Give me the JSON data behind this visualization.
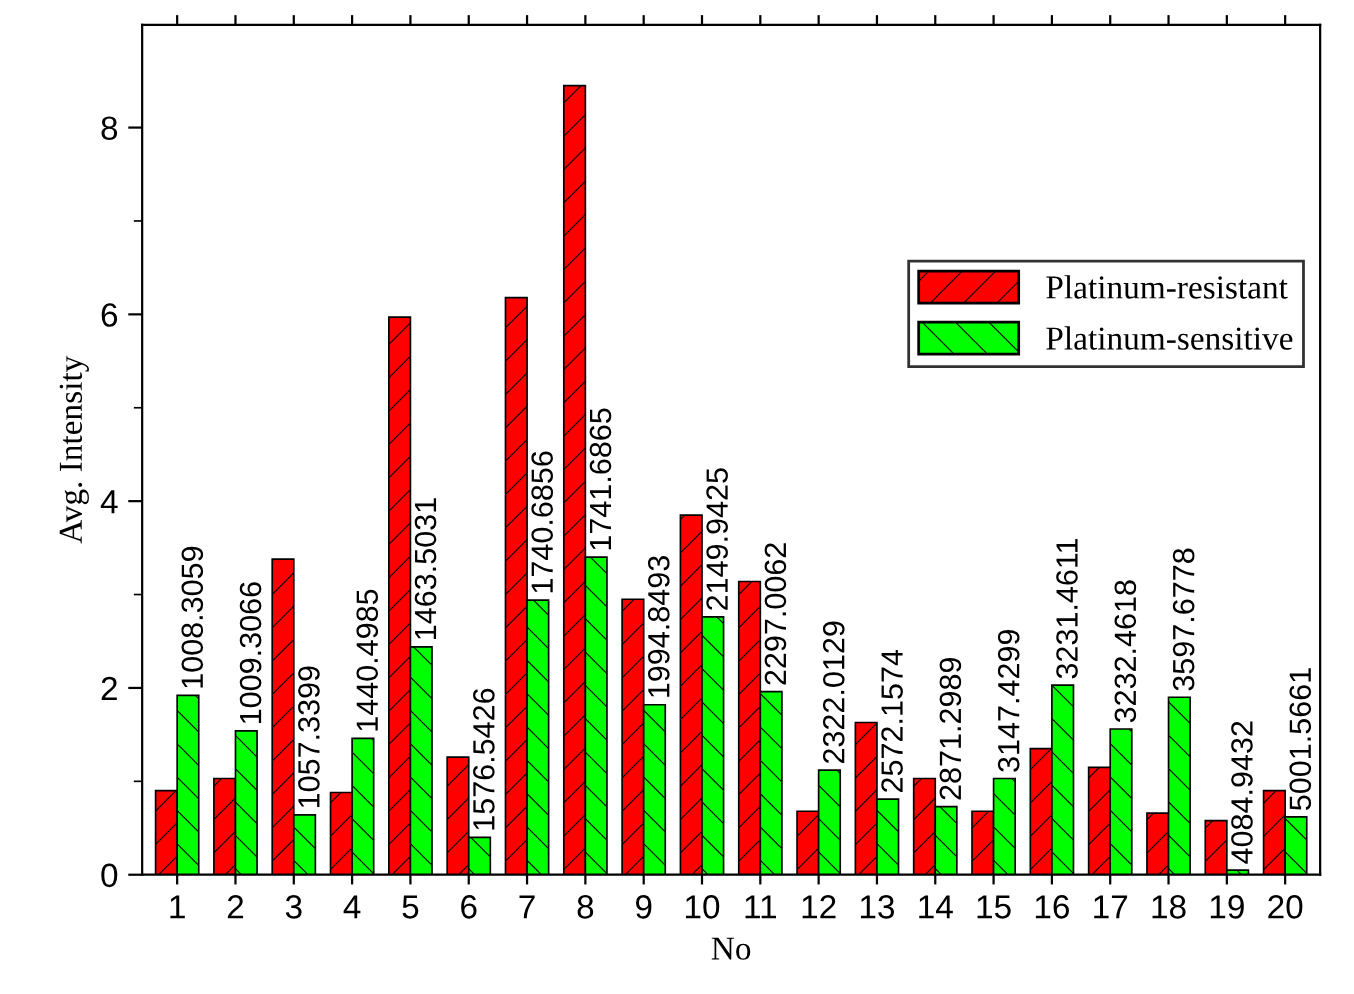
{
  "chart_data": {
    "type": "bar",
    "xlabel": "No",
    "ylabel": "Avg. Intensity",
    "categories": [
      "1",
      "2",
      "3",
      "4",
      "5",
      "6",
      "7",
      "8",
      "9",
      "10",
      "11",
      "12",
      "13",
      "14",
      "15",
      "16",
      "17",
      "18",
      "19",
      "20"
    ],
    "series": [
      {
        "name": "Platinum-resistant",
        "color": "#ff0000",
        "values": [
          0.9,
          1.03,
          3.38,
          0.88,
          5.97,
          1.26,
          6.18,
          8.45,
          2.95,
          3.85,
          3.14,
          0.68,
          1.63,
          1.03,
          0.68,
          1.35,
          1.15,
          0.66,
          0.58,
          0.9
        ]
      },
      {
        "name": "Platinum-sensitive",
        "color": "#00ff00",
        "values": [
          1.92,
          1.54,
          0.64,
          1.46,
          2.44,
          0.4,
          2.94,
          3.4,
          1.82,
          2.76,
          1.96,
          1.12,
          0.81,
          0.73,
          1.03,
          2.03,
          1.56,
          1.9,
          0.05,
          0.62
        ]
      }
    ],
    "ylim": [
      0,
      9.1
    ],
    "yticks": [
      0,
      {
        "value": 1,
        "label": null
      },
      2,
      {
        "value": 3,
        "label": null
      },
      4,
      {
        "value": 5,
        "label": null
      },
      6,
      {
        "value": 7,
        "label": null
      },
      8
    ],
    "legend": "right",
    "grid": false,
    "annotations": [
      {
        "text": "1008.3059",
        "x": "1",
        "y": 1.92
      },
      {
        "text": "1009.3066",
        "x": "2",
        "y": 1.54
      },
      {
        "text": "1057.3399",
        "x": "3",
        "y": 0.64
      },
      {
        "text": "1440.4985",
        "x": "4",
        "y": 1.46
      },
      {
        "text": "1463.5031",
        "x": "5",
        "y": 2.44
      },
      {
        "text": "1576.5426",
        "x": "6",
        "y": 0.4
      },
      {
        "text": "1740.6856",
        "x": "7",
        "y": 2.94
      },
      {
        "text": "1741.6865",
        "x": "8",
        "y": 3.4
      },
      {
        "text": "1994.8493",
        "x": "9",
        "y": 1.82
      },
      {
        "text": "2149.9425",
        "x": "10",
        "y": 2.76
      },
      {
        "text": "2297.0062",
        "x": "11",
        "y": 1.96
      },
      {
        "text": "2322.0129",
        "x": "12",
        "y": 1.12
      },
      {
        "text": "2572.1574",
        "x": "13",
        "y": 0.81
      },
      {
        "text": "2871.2989",
        "x": "14",
        "y": 0.73
      },
      {
        "text": "3147.4299",
        "x": "15",
        "y": 1.03
      },
      {
        "text": "3231.4611",
        "x": "16",
        "y": 2.03
      },
      {
        "text": "3232.4618",
        "x": "17",
        "y": 1.56
      },
      {
        "text": "3597.6778",
        "x": "18",
        "y": 1.9
      },
      {
        "text": "4084.9432",
        "x": "19",
        "y": 0.05
      },
      {
        "text": "5001.5661",
        "x": "20",
        "y": 0.62
      }
    ]
  }
}
